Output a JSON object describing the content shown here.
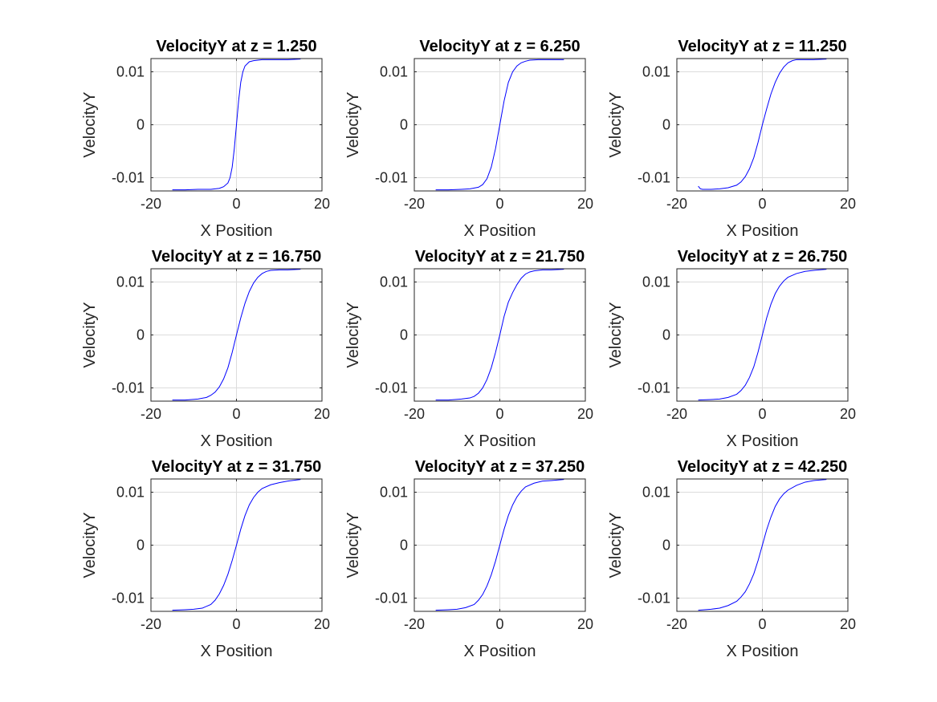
{
  "figure": {
    "background": "#ffffff",
    "line_color": "#0000ff",
    "grid_color": "#dcdcdc",
    "axes_color": "#262626"
  },
  "chart_data": [
    {
      "type": "line",
      "title": "VelocityY at z = 1.250",
      "xlabel": "X Position",
      "ylabel": "VelocityY",
      "xlim": [
        -20,
        20
      ],
      "ylim": [
        -0.0125,
        0.0125
      ],
      "xticks": [
        -20,
        0,
        20
      ],
      "yticks": [
        -0.01,
        0,
        0.01
      ],
      "xtick_labels": [
        "-20",
        "0",
        "20"
      ],
      "ytick_labels": [
        "-0.01",
        "0",
        "0.01"
      ],
      "grid": true,
      "series": [
        {
          "color": "#0000ff",
          "x": [
            -15,
            -12,
            -9,
            -6,
            -4,
            -3,
            -2,
            -1.5,
            -1,
            -0.5,
            0,
            0.5,
            1,
            1.5,
            2,
            3,
            4,
            5,
            6,
            9,
            12,
            15
          ],
          "y": [
            -0.0123,
            -0.0123,
            -0.0122,
            -0.0122,
            -0.012,
            -0.0117,
            -0.011,
            -0.01,
            -0.008,
            -0.0045,
            0.0,
            0.0045,
            0.008,
            0.01,
            0.0111,
            0.0119,
            0.0121,
            0.0122,
            0.0123,
            0.0123,
            0.0123,
            0.0124
          ]
        }
      ]
    },
    {
      "type": "line",
      "title": "VelocityY at z = 6.250",
      "xlabel": "X Position",
      "ylabel": "VelocityY",
      "xlim": [
        -20,
        20
      ],
      "ylim": [
        -0.0125,
        0.0125
      ],
      "xticks": [
        -20,
        0,
        20
      ],
      "yticks": [
        -0.01,
        0,
        0.01
      ],
      "xtick_labels": [
        "-20",
        "0",
        "20"
      ],
      "ytick_labels": [
        "-0.01",
        "0",
        "0.01"
      ],
      "grid": true,
      "series": [
        {
          "color": "#0000ff",
          "x": [
            -15,
            -12,
            -9,
            -7,
            -5,
            -4,
            -3,
            -2,
            -1,
            0,
            1,
            2,
            3,
            4,
            5,
            6,
            7,
            9,
            12,
            15
          ],
          "y": [
            -0.0123,
            -0.0123,
            -0.0122,
            -0.0121,
            -0.0118,
            -0.0113,
            -0.0102,
            -0.008,
            -0.0045,
            0.0,
            0.0045,
            0.008,
            0.01,
            0.0111,
            0.0117,
            0.012,
            0.0122,
            0.0123,
            0.0123,
            0.0123
          ]
        }
      ]
    },
    {
      "type": "line",
      "title": "VelocityY at z = 11.250",
      "xlabel": "X Position",
      "ylabel": "VelocityY",
      "xlim": [
        -20,
        20
      ],
      "ylim": [
        -0.0125,
        0.0125
      ],
      "xticks": [
        -20,
        0,
        20
      ],
      "yticks": [
        -0.01,
        0,
        0.01
      ],
      "xtick_labels": [
        "-20",
        "0",
        "20"
      ],
      "ytick_labels": [
        "-0.01",
        "0",
        "0.01"
      ],
      "grid": true,
      "series": [
        {
          "color": "#0000ff",
          "x": [
            -15,
            -14.5,
            -14,
            -12,
            -10,
            -8,
            -6,
            -5,
            -4,
            -3,
            -2,
            -1,
            0,
            1,
            2,
            3,
            4,
            5,
            6,
            7,
            8,
            10,
            12,
            15
          ],
          "y": [
            -0.0116,
            -0.0121,
            -0.0122,
            -0.0122,
            -0.0121,
            -0.0119,
            -0.0114,
            -0.0108,
            -0.0098,
            -0.0083,
            -0.0062,
            -0.0033,
            0.0,
            0.003,
            0.0058,
            0.008,
            0.0097,
            0.0109,
            0.0117,
            0.0121,
            0.0123,
            0.0123,
            0.0123,
            0.0124
          ]
        }
      ]
    },
    {
      "type": "line",
      "title": "VelocityY at z = 16.750",
      "xlabel": "X Position",
      "ylabel": "VelocityY",
      "xlim": [
        -20,
        20
      ],
      "ylim": [
        -0.0125,
        0.0125
      ],
      "xticks": [
        -20,
        0,
        20
      ],
      "yticks": [
        -0.01,
        0,
        0.01
      ],
      "xtick_labels": [
        "-20",
        "0",
        "20"
      ],
      "ytick_labels": [
        "-0.01",
        "0",
        "0.01"
      ],
      "grid": true,
      "series": [
        {
          "color": "#0000ff",
          "x": [
            -15,
            -12,
            -9,
            -7,
            -6,
            -5,
            -4,
            -3,
            -2,
            -1,
            0,
            1,
            2,
            3,
            4,
            5,
            6,
            7,
            8,
            10,
            12,
            15
          ],
          "y": [
            -0.0123,
            -0.0123,
            -0.0121,
            -0.0118,
            -0.0114,
            -0.0108,
            -0.0098,
            -0.0083,
            -0.0062,
            -0.0033,
            0.0,
            0.0032,
            0.006,
            0.0082,
            0.0098,
            0.0109,
            0.0116,
            0.012,
            0.0122,
            0.0123,
            0.0123,
            0.0124
          ]
        }
      ]
    },
    {
      "type": "line",
      "title": "VelocityY at z = 21.750",
      "xlabel": "X Position",
      "ylabel": "VelocityY",
      "xlim": [
        -20,
        20
      ],
      "ylim": [
        -0.0125,
        0.0125
      ],
      "xticks": [
        -20,
        0,
        20
      ],
      "yticks": [
        -0.01,
        0,
        0.01
      ],
      "xtick_labels": [
        "-20",
        "0",
        "20"
      ],
      "ytick_labels": [
        "-0.01",
        "0",
        "0.01"
      ],
      "grid": true,
      "series": [
        {
          "color": "#0000ff",
          "x": [
            -15,
            -12,
            -9,
            -7,
            -6,
            -5,
            -4,
            -3,
            -2,
            -1,
            0,
            1,
            2,
            3,
            4,
            5,
            6,
            7,
            8,
            10,
            12,
            15
          ],
          "y": [
            -0.0123,
            -0.0123,
            -0.0121,
            -0.0119,
            -0.0116,
            -0.011,
            -0.01,
            -0.0084,
            -0.0062,
            -0.0033,
            0.0,
            0.0035,
            0.0062,
            0.008,
            0.0095,
            0.0107,
            0.0115,
            0.0119,
            0.0121,
            0.0123,
            0.0123,
            0.0124
          ]
        }
      ]
    },
    {
      "type": "line",
      "title": "VelocityY at z = 26.750",
      "xlabel": "X Position",
      "ylabel": "VelocityY",
      "xlim": [
        -20,
        20
      ],
      "ylim": [
        -0.0125,
        0.0125
      ],
      "xticks": [
        -20,
        0,
        20
      ],
      "yticks": [
        -0.01,
        0,
        0.01
      ],
      "xtick_labels": [
        "-20",
        "0",
        "20"
      ],
      "ytick_labels": [
        "-0.01",
        "0",
        "0.01"
      ],
      "grid": true,
      "series": [
        {
          "color": "#0000ff",
          "x": [
            -15,
            -12,
            -10,
            -8,
            -6,
            -5,
            -4,
            -3,
            -2,
            -1,
            0,
            1,
            2,
            3,
            4,
            5,
            6,
            8,
            10,
            12,
            15
          ],
          "y": [
            -0.0123,
            -0.0122,
            -0.0121,
            -0.0118,
            -0.0112,
            -0.0105,
            -0.0095,
            -0.008,
            -0.006,
            -0.0032,
            0.0,
            0.0032,
            0.0058,
            0.0078,
            0.0092,
            0.0102,
            0.0109,
            0.0116,
            0.012,
            0.0122,
            0.0124
          ]
        }
      ]
    },
    {
      "type": "line",
      "title": "VelocityY at z = 31.750",
      "xlabel": "X Position",
      "ylabel": "VelocityY",
      "xlim": [
        -20,
        20
      ],
      "ylim": [
        -0.0125,
        0.0125
      ],
      "xticks": [
        -20,
        0,
        20
      ],
      "yticks": [
        -0.01,
        0,
        0.01
      ],
      "xtick_labels": [
        "-20",
        "0",
        "20"
      ],
      "ytick_labels": [
        "-0.01",
        "0",
        "0.01"
      ],
      "grid": true,
      "series": [
        {
          "color": "#0000ff",
          "x": [
            -15,
            -12,
            -10,
            -8,
            -6,
            -5,
            -4,
            -3,
            -2,
            -1,
            0,
            1,
            2,
            3,
            4,
            5,
            6,
            8,
            10,
            12,
            15
          ],
          "y": [
            -0.0123,
            -0.0122,
            -0.0121,
            -0.0119,
            -0.0112,
            -0.0104,
            -0.0092,
            -0.0076,
            -0.0055,
            -0.0029,
            0.0,
            0.003,
            0.0056,
            0.0076,
            0.009,
            0.01,
            0.0107,
            0.0114,
            0.0118,
            0.0121,
            0.0124
          ]
        }
      ]
    },
    {
      "type": "line",
      "title": "VelocityY at z = 37.250",
      "xlabel": "X Position",
      "ylabel": "VelocityY",
      "xlim": [
        -20,
        20
      ],
      "ylim": [
        -0.0125,
        0.0125
      ],
      "xticks": [
        -20,
        0,
        20
      ],
      "yticks": [
        -0.01,
        0,
        0.01
      ],
      "xtick_labels": [
        "-20",
        "0",
        "20"
      ],
      "ytick_labels": [
        "-0.01",
        "0",
        "0.01"
      ],
      "grid": true,
      "series": [
        {
          "color": "#0000ff",
          "x": [
            -15,
            -12,
            -10,
            -8,
            -6,
            -5,
            -4,
            -3,
            -2,
            -1,
            0,
            1,
            2,
            3,
            4,
            5,
            6,
            8,
            10,
            12,
            15
          ],
          "y": [
            -0.0123,
            -0.0122,
            -0.0121,
            -0.0118,
            -0.0112,
            -0.0104,
            -0.0093,
            -0.0077,
            -0.0056,
            -0.003,
            0.0,
            0.003,
            0.0056,
            0.0076,
            0.0091,
            0.0102,
            0.011,
            0.0117,
            0.0121,
            0.0122,
            0.0124
          ]
        }
      ]
    },
    {
      "type": "line",
      "title": "VelocityY at z = 42.250",
      "xlabel": "X Position",
      "ylabel": "VelocityY",
      "xlim": [
        -20,
        20
      ],
      "ylim": [
        -0.0125,
        0.0125
      ],
      "xticks": [
        -20,
        0,
        20
      ],
      "yticks": [
        -0.01,
        0,
        0.01
      ],
      "xtick_labels": [
        "-20",
        "0",
        "20"
      ],
      "ytick_labels": [
        "-0.01",
        "0",
        "0.01"
      ],
      "grid": true,
      "series": [
        {
          "color": "#0000ff",
          "x": [
            -15,
            -12,
            -10,
            -8,
            -6,
            -5,
            -4,
            -3,
            -2,
            -1,
            0,
            1,
            2,
            3,
            4,
            5,
            6,
            8,
            10,
            12,
            15
          ],
          "y": [
            -0.0123,
            -0.0121,
            -0.0119,
            -0.0114,
            -0.0106,
            -0.0098,
            -0.0088,
            -0.0073,
            -0.0054,
            -0.0029,
            0.0,
            0.0029,
            0.0053,
            0.0073,
            0.0087,
            0.0097,
            0.0104,
            0.0113,
            0.0119,
            0.0122,
            0.0124
          ]
        }
      ]
    }
  ]
}
